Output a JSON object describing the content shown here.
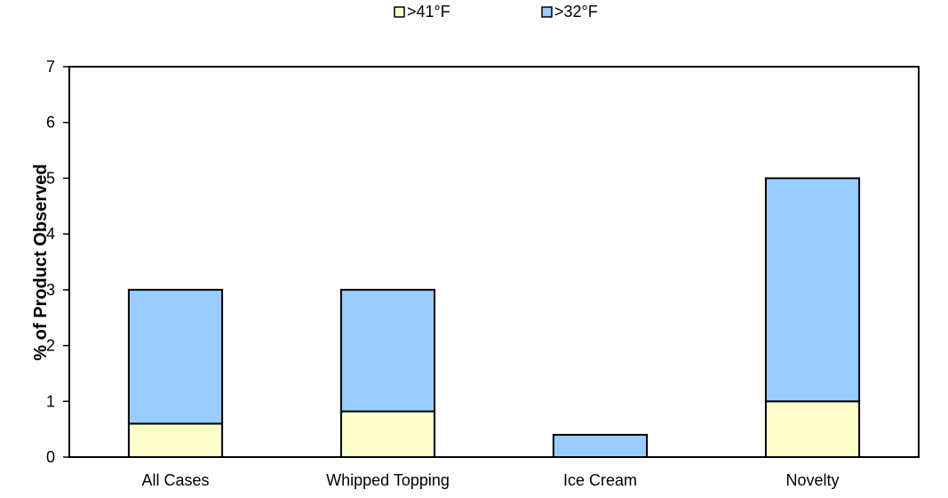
{
  "chart_data": {
    "type": "bar",
    "stacked": true,
    "categories": [
      "All Cases",
      "Whipped Topping",
      "Ice Cream",
      "Novelty"
    ],
    "series": [
      {
        "name": ">41°F",
        "color": "#ffffcc",
        "values": [
          0.6,
          0.82,
          0.0,
          1.0
        ]
      },
      {
        "name": ">32°F",
        "color": "#99ccff",
        "values": [
          2.4,
          2.18,
          0.4,
          4.0
        ]
      }
    ],
    "ylabel": "% of Product Observed",
    "xlabel": "",
    "ylim": [
      0,
      7
    ],
    "yticks": [
      0,
      1,
      2,
      3,
      4,
      5,
      6,
      7
    ],
    "grid": false,
    "legend_position": "top"
  }
}
